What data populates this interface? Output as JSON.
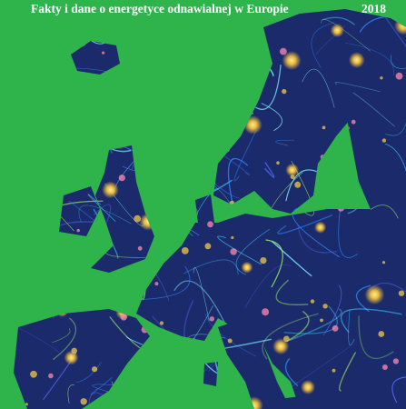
{
  "header": {
    "title": "Fakty i dane o energetyce odnawialnej w Europie",
    "year": "2018"
  }
}
